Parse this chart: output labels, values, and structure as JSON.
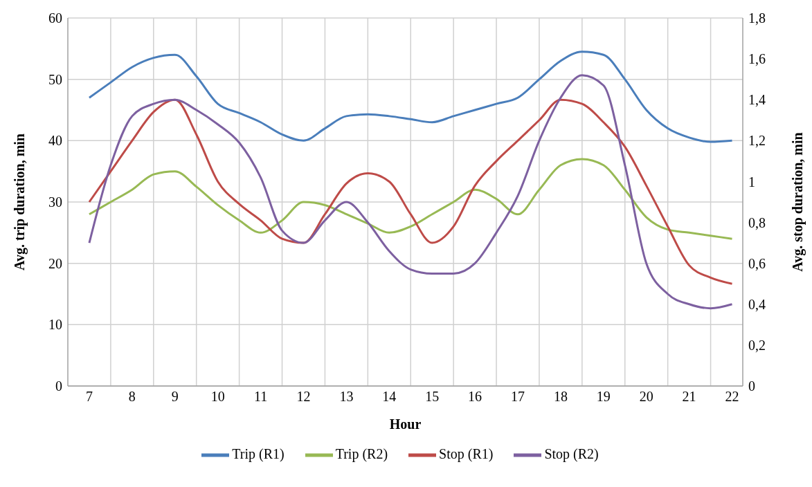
{
  "chart_data": {
    "type": "line",
    "xlabel": "Hour",
    "ylabel": "Avg. trip duration, min",
    "y2label": "Avg. stop duration, min",
    "x": [
      7,
      7.5,
      8,
      8.5,
      9,
      9.5,
      10,
      10.5,
      11,
      11.5,
      12,
      12.5,
      13,
      13.5,
      14,
      14.5,
      15,
      15.5,
      16,
      16.5,
      17,
      17.5,
      18,
      18.5,
      19,
      19.5,
      20,
      20.5,
      21,
      21.5,
      22
    ],
    "series": [
      {
        "name": "Trip (R1)",
        "color": "#4a7ebb",
        "values": [
          47,
          49.5,
          52,
          53.5,
          54,
          50.5,
          46,
          44.5,
          43,
          41,
          40,
          42,
          44,
          44.3,
          44,
          43.5,
          43,
          44,
          45,
          46,
          47,
          50,
          53,
          54.5,
          54,
          50,
          45,
          42,
          40.5,
          39.8,
          40
        ]
      },
      {
        "name": "Trip (R2)",
        "color": "#98b954",
        "values": [
          28,
          30,
          32,
          34.5,
          35,
          32.5,
          29.5,
          27,
          25,
          27,
          30,
          29.5,
          28,
          26.5,
          25,
          26,
          28,
          30,
          32,
          30.5,
          28,
          32,
          36,
          37,
          36,
          32,
          27.5,
          25.5,
          25,
          24.5,
          24
        ]
      },
      {
        "name": "Stop (R1)",
        "color": "#be4b48",
        "axis": "y2",
        "values": [
          0.9,
          1.05,
          1.2,
          1.34,
          1.4,
          1.23,
          1.0,
          0.89,
          0.81,
          0.72,
          0.7,
          0.84,
          0.99,
          1.04,
          1.0,
          0.84,
          0.7,
          0.78,
          0.98,
          1.1,
          1.2,
          1.3,
          1.4,
          1.38,
          1.29,
          1.17,
          0.98,
          0.78,
          0.59,
          0.53,
          0.5
        ]
      },
      {
        "name": "Stop (R2)",
        "color": "#7d60a0",
        "axis": "y2",
        "values": [
          0.7,
          1.08,
          1.32,
          1.38,
          1.4,
          1.35,
          1.28,
          1.19,
          1.02,
          0.76,
          0.7,
          0.81,
          0.9,
          0.8,
          0.66,
          0.57,
          0.55,
          0.55,
          0.6,
          0.75,
          0.93,
          1.2,
          1.41,
          1.52,
          1.47,
          1.08,
          0.6,
          0.45,
          0.4,
          0.38,
          0.4
        ]
      }
    ],
    "xlim": [
      6.5,
      22.25
    ],
    "xticks": [
      7,
      {
        "value": 7.5,
        "label": null
      },
      8,
      {
        "value": 8.5,
        "label": null
      },
      9,
      {
        "value": 9.5,
        "label": null
      },
      10,
      {
        "value": 10.5,
        "label": null
      },
      11,
      {
        "value": 11.5,
        "label": null
      },
      12,
      {
        "value": 12.5,
        "label": null
      },
      13,
      {
        "value": 13.5,
        "label": null
      },
      14,
      {
        "value": 14.5,
        "label": null
      },
      15,
      {
        "value": 15.5,
        "label": null
      },
      16,
      {
        "value": 16.5,
        "label": null
      },
      17,
      {
        "value": 17.5,
        "label": null
      },
      18,
      {
        "value": 18.5,
        "label": null
      },
      19,
      {
        "value": 19.5,
        "label": null
      },
      20,
      {
        "value": 20.5,
        "label": null
      },
      21,
      {
        "value": 21.5,
        "label": null
      },
      22
    ],
    "ylim": [
      0,
      60
    ],
    "yticks": [
      0,
      10,
      20,
      30,
      40,
      50,
      60
    ],
    "y2lim": [
      0,
      1.8
    ],
    "y2ticks": [
      0,
      {
        "value": 0.2,
        "label": "0,2"
      },
      {
        "value": 0.4,
        "label": "0,4"
      },
      {
        "value": 0.6,
        "label": "0,6"
      },
      {
        "value": 0.8,
        "label": "0,8"
      },
      1,
      {
        "value": 1.2,
        "label": "1,2"
      },
      {
        "value": 1.4,
        "label": "1,4"
      },
      {
        "value": 1.6,
        "label": "1,6"
      },
      {
        "value": 1.8,
        "label": "1,8"
      }
    ],
    "grid": true,
    "legend": "bottom",
    "marker": "none",
    "line_style": "solid"
  }
}
